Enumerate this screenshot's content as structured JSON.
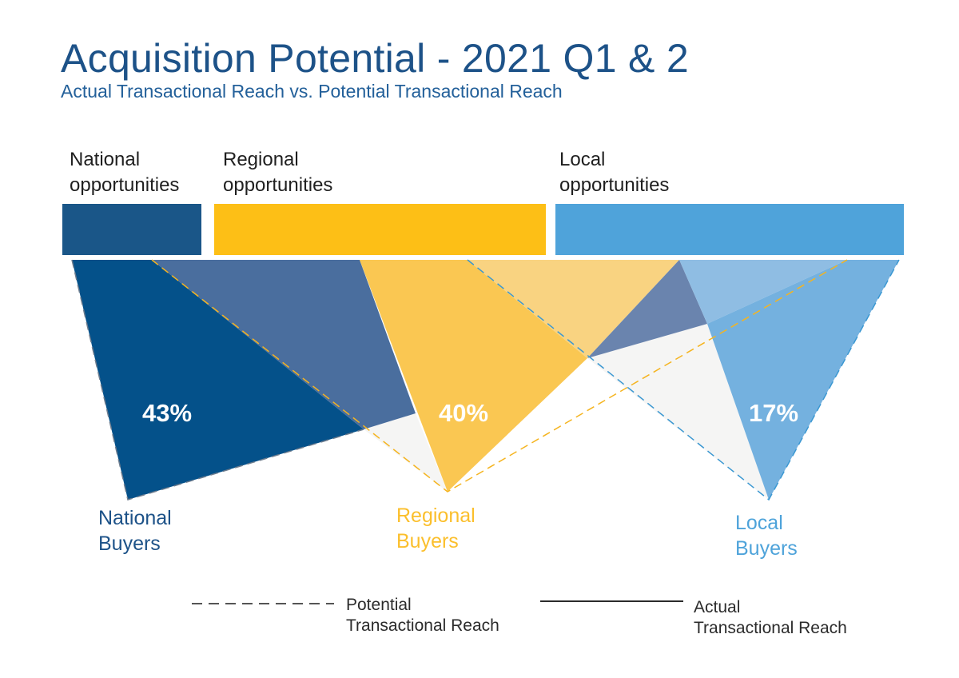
{
  "title": "Acquisition Potential - 2021 Q1 & 2",
  "subtitle": "Actual Transactional Reach vs. Potential Transactional Reach",
  "opportunities": [
    {
      "line1": "National",
      "line2": "opportunities",
      "color": "#1a5688"
    },
    {
      "line1": "Regional",
      "line2": "opportunities",
      "color": "#fdbf16"
    },
    {
      "line1": "Local",
      "line2": "opportunities",
      "color": "#4fa3da"
    }
  ],
  "buyers": [
    {
      "line1": "National",
      "line2": "Buyers",
      "percent": "43%",
      "color": "#1d5288"
    },
    {
      "line1": "Regional",
      "line2": "Buyers",
      "percent": "40%",
      "color": "#fbbf2c"
    },
    {
      "line1": "Local",
      "line2": "Buyers",
      "percent": "17%",
      "color": "#4ea3da"
    }
  ],
  "legend": {
    "potential_line1": "Potential",
    "potential_line2": "Transactional Reach",
    "actual_line1": "Actual",
    "actual_line2": "Transactional Reach"
  }
}
